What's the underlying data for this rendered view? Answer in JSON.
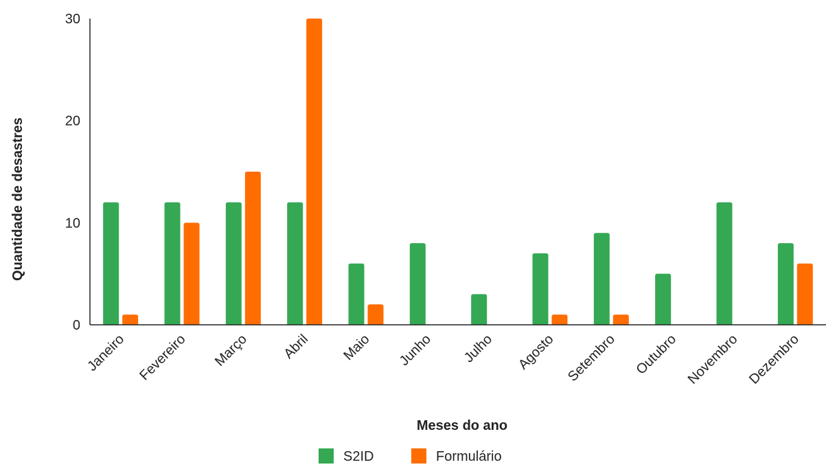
{
  "chart_data": {
    "type": "bar",
    "categories": [
      "Janeiro",
      "Fevereiro",
      "Março",
      "Abril",
      "Maio",
      "Junho",
      "Julho",
      "Agosto",
      "Setembro",
      "Outubro",
      "Novembro",
      "Dezembro"
    ],
    "series": [
      {
        "name": "S2ID",
        "color": "#34a853",
        "values": [
          12,
          12,
          12,
          12,
          6,
          8,
          3,
          7,
          9,
          5,
          12,
          8
        ]
      },
      {
        "name": "Formulário",
        "color": "#ff6d01",
        "values": [
          1,
          10,
          15,
          30,
          2,
          0,
          0,
          1,
          1,
          0,
          0,
          6
        ]
      }
    ],
    "title": "",
    "xlabel": "Meses do ano",
    "ylabel": "Quantidade de desastres",
    "ylim": [
      0,
      30
    ],
    "yticks": [
      0,
      10,
      20,
      30
    ],
    "grid": false,
    "legend": "bottom"
  }
}
